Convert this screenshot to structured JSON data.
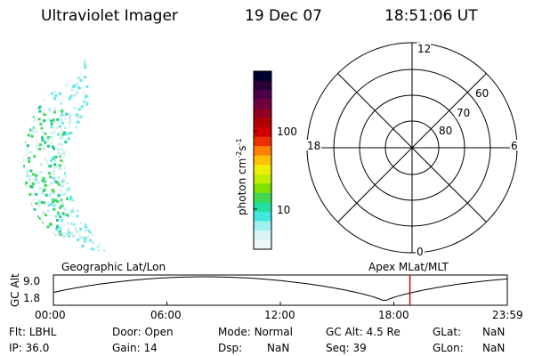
{
  "header": {
    "title": "Ultraviolet Imager",
    "date": "19 Dec 07",
    "time": "18:51:06 UT"
  },
  "colorbar": {
    "label": "photon cm",
    "label_sup1": "-2",
    "label_mid": "s",
    "label_sup2": "-1",
    "tick_labels": [
      "100",
      "10"
    ],
    "colors": [
      "#000030",
      "#2b0038",
      "#4a0048",
      "#700040",
      "#900020",
      "#b00000",
      "#d00000",
      "#ee3000",
      "#ff8000",
      "#ffc000",
      "#eeee00",
      "#c0ee00",
      "#80e000",
      "#40d850",
      "#20e0a0",
      "#40e8e0",
      "#a0f0f0",
      "#d8f4f4",
      "#eef8f8"
    ]
  },
  "polar": {
    "labels": {
      "top": "12",
      "left": "18",
      "right": "6",
      "bottom": "0",
      "ring60": "60",
      "ring70": "70",
      "ring80": "80"
    }
  },
  "timeline": {
    "y_label": "GC Alt",
    "y_ticks": [
      "9.0",
      "1.8"
    ],
    "left_caption": "Geographic Lat/Lon",
    "right_caption": "Apex MLat/MLT",
    "x_ticks": [
      "00:00",
      "06:00",
      "12:00",
      "18:00",
      "23:59"
    ],
    "marker_hour": 18.85
  },
  "info": {
    "flt_label": "Flt:",
    "flt_value": "LBHL",
    "door_label": "Door:",
    "door_value": "Open",
    "mode_label": "Mode:",
    "mode_value": "Normal",
    "gcalt_label": "GC Alt:",
    "gcalt_value": "4.5 Re",
    "glat_label": "GLat:",
    "glat_value": "NaN",
    "ip_label": "IP:",
    "ip_value": "36.0",
    "gain_label": "Gain:",
    "gain_value": "14",
    "dsp_label": "Dsp:",
    "dsp_value": "NaN",
    "seq_label": "Seq:",
    "seq_value": "39",
    "glon_label": "GLon:",
    "glon_value": "NaN"
  }
}
